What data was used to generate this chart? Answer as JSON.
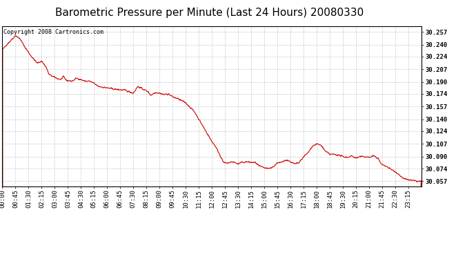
{
  "title": "Barometric Pressure per Minute (Last 24 Hours) 20080330",
  "copyright": "Copyright 2008 Cartronics.com",
  "line_color": "#cc0000",
  "background_color": "#ffffff",
  "grid_color": "#c8c8c8",
  "y_ticks": [
    30.057,
    30.074,
    30.09,
    30.107,
    30.124,
    30.14,
    30.157,
    30.174,
    30.19,
    30.207,
    30.224,
    30.24,
    30.257
  ],
  "ylim": [
    30.05,
    30.265
  ],
  "x_tick_labels": [
    "00:00",
    "00:45",
    "01:30",
    "02:15",
    "03:00",
    "03:45",
    "04:30",
    "05:15",
    "06:00",
    "06:45",
    "07:30",
    "08:15",
    "09:00",
    "09:45",
    "10:30",
    "11:15",
    "12:00",
    "12:45",
    "13:30",
    "14:15",
    "15:00",
    "15:45",
    "16:30",
    "17:15",
    "18:00",
    "18:45",
    "19:30",
    "20:15",
    "21:00",
    "21:45",
    "22:30",
    "23:15"
  ],
  "title_fontsize": 11,
  "tick_fontsize": 6.5,
  "copyright_fontsize": 6,
  "waypoints": [
    [
      0,
      30.233
    ],
    [
      15,
      30.24
    ],
    [
      45,
      30.252
    ],
    [
      60,
      30.248
    ],
    [
      80,
      30.235
    ],
    [
      100,
      30.224
    ],
    [
      120,
      30.215
    ],
    [
      135,
      30.218
    ],
    [
      150,
      30.21
    ],
    [
      160,
      30.2
    ],
    [
      180,
      30.196
    ],
    [
      200,
      30.193
    ],
    [
      210,
      30.197
    ],
    [
      220,
      30.192
    ],
    [
      240,
      30.191
    ],
    [
      255,
      30.195
    ],
    [
      270,
      30.193
    ],
    [
      285,
      30.191
    ],
    [
      300,
      30.191
    ],
    [
      315,
      30.188
    ],
    [
      330,
      30.184
    ],
    [
      360,
      30.182
    ],
    [
      390,
      30.18
    ],
    [
      420,
      30.179
    ],
    [
      450,
      30.175
    ],
    [
      465,
      30.184
    ],
    [
      480,
      30.181
    ],
    [
      500,
      30.177
    ],
    [
      510,
      30.172
    ],
    [
      525,
      30.176
    ],
    [
      540,
      30.175
    ],
    [
      555,
      30.173
    ],
    [
      570,
      30.174
    ],
    [
      585,
      30.17
    ],
    [
      600,
      30.168
    ],
    [
      615,
      30.165
    ],
    [
      630,
      30.162
    ],
    [
      645,
      30.156
    ],
    [
      660,
      30.15
    ],
    [
      675,
      30.14
    ],
    [
      690,
      30.13
    ],
    [
      705,
      30.12
    ],
    [
      720,
      30.11
    ],
    [
      730,
      30.105
    ],
    [
      740,
      30.098
    ],
    [
      750,
      30.09
    ],
    [
      760,
      30.082
    ],
    [
      770,
      30.081
    ],
    [
      780,
      30.082
    ],
    [
      790,
      30.083
    ],
    [
      800,
      30.082
    ],
    [
      810,
      30.08
    ],
    [
      820,
      30.082
    ],
    [
      840,
      30.083
    ],
    [
      860,
      30.082
    ],
    [
      870,
      30.082
    ],
    [
      880,
      30.078
    ],
    [
      890,
      30.076
    ],
    [
      900,
      30.075
    ],
    [
      910,
      30.074
    ],
    [
      915,
      30.074
    ],
    [
      930,
      30.076
    ],
    [
      945,
      30.082
    ],
    [
      960,
      30.082
    ],
    [
      975,
      30.086
    ],
    [
      990,
      30.083
    ],
    [
      1005,
      30.08
    ],
    [
      1020,
      30.082
    ],
    [
      1035,
      30.09
    ],
    [
      1050,
      30.095
    ],
    [
      1065,
      30.104
    ],
    [
      1080,
      30.107
    ],
    [
      1095,
      30.105
    ],
    [
      1110,
      30.097
    ],
    [
      1125,
      30.093
    ],
    [
      1140,
      30.093
    ],
    [
      1155,
      30.092
    ],
    [
      1170,
      30.09
    ],
    [
      1185,
      30.089
    ],
    [
      1200,
      30.091
    ],
    [
      1215,
      30.088
    ],
    [
      1230,
      30.09
    ],
    [
      1245,
      30.09
    ],
    [
      1260,
      30.089
    ],
    [
      1275,
      30.091
    ],
    [
      1290,
      30.088
    ],
    [
      1300,
      30.081
    ],
    [
      1310,
      30.078
    ],
    [
      1320,
      30.077
    ],
    [
      1335,
      30.073
    ],
    [
      1350,
      30.07
    ],
    [
      1365,
      30.065
    ],
    [
      1380,
      30.06
    ],
    [
      1395,
      30.059
    ],
    [
      1410,
      30.058
    ],
    [
      1425,
      30.057
    ],
    [
      1439,
      30.057
    ]
  ]
}
